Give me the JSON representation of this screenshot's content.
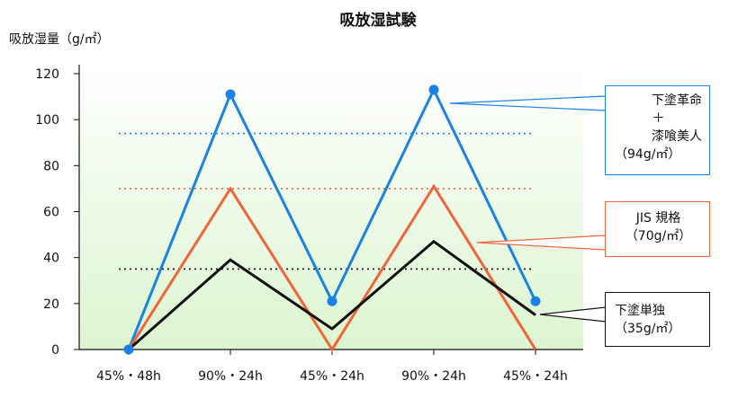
{
  "chart_data": {
    "type": "line",
    "title": "吸放湿試験",
    "ylabel": "吸放湿量（g/㎡）",
    "xlabel": "",
    "ylim": [
      0,
      120
    ],
    "yticks": [
      0,
      20,
      40,
      60,
      80,
      100,
      120
    ],
    "categories": [
      "45%・48h",
      "90%・24h",
      "45%・24h",
      "90%・24h",
      "45%・24h"
    ],
    "grid": false,
    "series": [
      {
        "key": "blue",
        "values": [
          0,
          111,
          21,
          113,
          21
        ],
        "color": "#1a82e6",
        "markers": true
      },
      {
        "key": "orange",
        "values": [
          0,
          70,
          0,
          71,
          0
        ],
        "color": "#f2643c",
        "markers": false
      },
      {
        "key": "black",
        "values": [
          0,
          39,
          9,
          47,
          15
        ],
        "color": "#111111",
        "markers": false
      }
    ],
    "reference_lines": [
      {
        "value": 94,
        "color": "#1a82e6"
      },
      {
        "value": 70,
        "color": "#f2643c"
      },
      {
        "value": 35,
        "color": "#111111"
      }
    ],
    "annotations": [
      {
        "series": "blue",
        "lines": [
          "下塗革命",
          "＋",
          "漆喰美人",
          "（94g/㎡）"
        ],
        "border": "#1a82e6"
      },
      {
        "series": "orange",
        "lines": [
          "JIS 規格",
          "（70g/㎡）"
        ],
        "border": "#f2643c"
      },
      {
        "series": "black",
        "lines": [
          "下塗単独",
          "（35g/㎡）"
        ],
        "border": "#111111"
      }
    ],
    "background_gradient": [
      "#ffffff",
      "#dcf5d0"
    ]
  }
}
